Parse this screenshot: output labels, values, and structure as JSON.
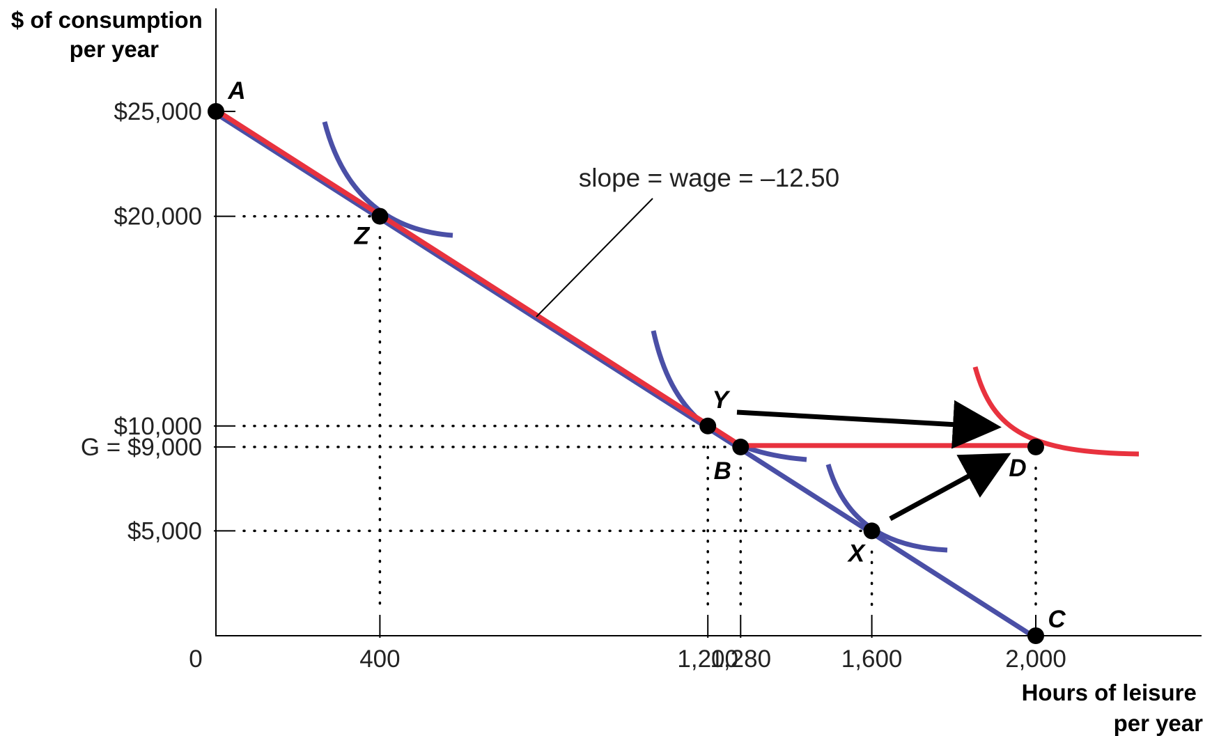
{
  "chart_data": {
    "type": "line",
    "title": "",
    "xlabel": "Hours of leisure\nper year",
    "ylabel": "$ of consumption\nper year",
    "xlim": [
      0,
      2400
    ],
    "ylim": [
      0,
      25000
    ],
    "grid": false,
    "x_ticks": [
      {
        "value": 0,
        "label": "0"
      },
      {
        "value": 400,
        "label": "400"
      },
      {
        "value": 1200,
        "label": "1,200"
      },
      {
        "value": 1280,
        "label": "1,280"
      },
      {
        "value": 1600,
        "label": "1,600"
      },
      {
        "value": 2000,
        "label": "2,000"
      }
    ],
    "y_ticks": [
      {
        "value": 25000,
        "label": "$25,000"
      },
      {
        "value": 20000,
        "label": "$20,000"
      },
      {
        "value": 10000,
        "label": "$10,000"
      },
      {
        "value": 9000,
        "label": "G = $9,000"
      },
      {
        "value": 5000,
        "label": "$5,000"
      }
    ],
    "annotation": "slope = wage = –12.50",
    "wage": 12.5,
    "colors": {
      "red": "#e8323e",
      "blue": "#4a4fa6",
      "black": "#000000"
    },
    "lines": [
      {
        "id": "budget-original",
        "color": "#4a4fa6",
        "points": [
          [
            0,
            25000
          ],
          [
            2000,
            0
          ]
        ]
      },
      {
        "id": "budget-with-grant",
        "color": "#e8323e",
        "points": [
          [
            0,
            25000
          ],
          [
            1280,
            9000
          ],
          [
            2000,
            9000
          ]
        ]
      }
    ],
    "points": [
      {
        "label": "A",
        "x": 0,
        "y": 25000
      },
      {
        "label": "Z",
        "x": 400,
        "y": 20000
      },
      {
        "label": "Y",
        "x": 1200,
        "y": 10000
      },
      {
        "label": "B",
        "x": 1280,
        "y": 9000
      },
      {
        "label": "X",
        "x": 1600,
        "y": 5000
      },
      {
        "label": "D",
        "x": 2000,
        "y": 9000
      },
      {
        "label": "C",
        "x": 2000,
        "y": 0
      }
    ],
    "arrows": [
      {
        "from": "Y",
        "to": "D"
      },
      {
        "from": "X",
        "to": "D"
      }
    ]
  }
}
